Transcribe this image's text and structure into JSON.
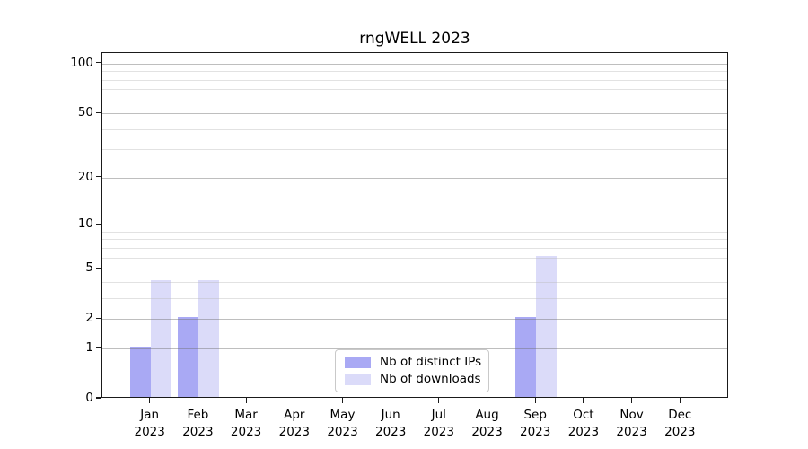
{
  "chart_data": {
    "type": "bar",
    "title": "rngWELL 2023",
    "xlabel": "",
    "ylabel": "",
    "categories": [
      "Jan",
      "Feb",
      "Mar",
      "Apr",
      "May",
      "Jun",
      "Jul",
      "Aug",
      "Sep",
      "Oct",
      "Nov",
      "Dec"
    ],
    "x_year": "2023",
    "series": [
      {
        "name": "Nb of distinct IPs",
        "color": "#a9a9f4",
        "values": [
          1,
          2,
          0,
          0,
          0,
          0,
          0,
          0,
          2,
          0,
          0,
          0
        ]
      },
      {
        "name": "Nb of downloads",
        "color": "#dbdbf9",
        "values": [
          4,
          4,
          0,
          0,
          0,
          0,
          0,
          0,
          6,
          0,
          0,
          0
        ]
      }
    ],
    "y_axis": {
      "scale": "log1p",
      "min": 0,
      "max": 116,
      "major_ticks": [
        0,
        1,
        2,
        5,
        10,
        20,
        50,
        100
      ],
      "minor_ticks": [
        3,
        4,
        6,
        7,
        8,
        9,
        30,
        40,
        60,
        70,
        80,
        90
      ]
    },
    "grid": true,
    "legend_position": "lower center"
  }
}
